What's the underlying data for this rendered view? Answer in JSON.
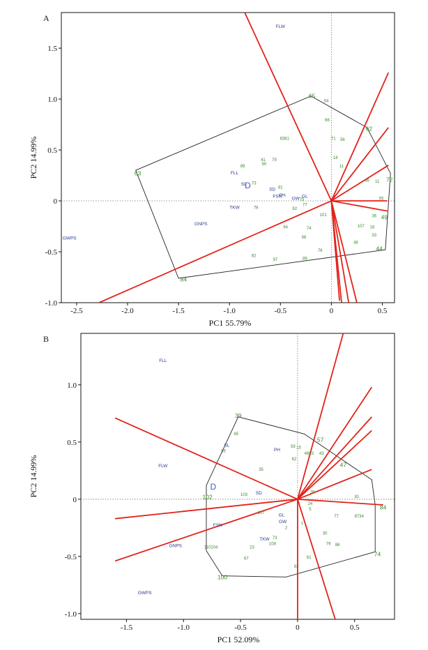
{
  "chart_data": [
    {
      "type": "scatter",
      "panel_label": "A",
      "xlabel": "PC1 55.79%",
      "ylabel": "PC2 14.99%",
      "xlim": [
        -2.65,
        0.62
      ],
      "ylim": [
        -1.0,
        1.85
      ],
      "xticks": [
        -2.5,
        -2.0,
        -1.5,
        -1.0,
        -0.5,
        0,
        0.5
      ],
      "xtick_labels": [
        "-2.5",
        "-2.0",
        "-1.5",
        "-1.0",
        "-0.5",
        "0",
        "0.5"
      ],
      "yticks": [
        -1.0,
        -0.5,
        0,
        0.5,
        1.0,
        1.5
      ],
      "ytick_labels": [
        "-1.0",
        "-0.5",
        "0",
        "0.5",
        "1.0",
        "1.5"
      ],
      "traits": [
        {
          "label": "FLW",
          "x": -0.5,
          "y": 1.7
        },
        {
          "label": "FLL",
          "x": -0.95,
          "y": 0.26
        },
        {
          "label": "SL",
          "x": -0.86,
          "y": 0.15
        },
        {
          "label": "SD",
          "x": -0.58,
          "y": 0.1
        },
        {
          "label": "PH",
          "x": -0.48,
          "y": 0.04
        },
        {
          "label": "FSN",
          "x": -0.53,
          "y": 0.03
        },
        {
          "label": "GW",
          "x": -0.35,
          "y": 0.01
        },
        {
          "label": "GL",
          "x": -0.26,
          "y": 0.03
        },
        {
          "label": "TKW",
          "x": -0.95,
          "y": -0.08
        },
        {
          "label": "GNPS",
          "x": -1.28,
          "y": -0.24
        },
        {
          "label": "GWPS",
          "x": -2.57,
          "y": -0.38
        }
      ],
      "center_label": {
        "label": "D",
        "x": -0.82,
        "y": 0.15
      },
      "hull": [
        [
          -1.92,
          0.3
        ],
        [
          -0.2,
          1.03
        ],
        [
          0.35,
          0.72
        ],
        [
          0.58,
          0.27
        ],
        [
          0.53,
          -0.48
        ],
        [
          -1.5,
          -0.76
        ]
      ],
      "genotypes_large": [
        {
          "label": "65",
          "x": -0.19,
          "y": 1.03
        },
        {
          "label": "63",
          "x": -1.9,
          "y": 0.27
        },
        {
          "label": "84",
          "x": -1.45,
          "y": -0.77
        },
        {
          "label": "62",
          "x": 0.37,
          "y": 0.71
        },
        {
          "label": "72",
          "x": 0.57,
          "y": 0.21
        },
        {
          "label": "49",
          "x": 0.52,
          "y": -0.16
        },
        {
          "label": "44",
          "x": 0.47,
          "y": -0.47
        }
      ],
      "genotypes": [
        {
          "label": "54",
          "x": -0.05,
          "y": 0.97
        },
        {
          "label": "66",
          "x": -0.04,
          "y": 0.78
        },
        {
          "label": "8381",
          "x": -0.46,
          "y": 0.6
        },
        {
          "label": "71",
          "x": 0.02,
          "y": 0.6
        },
        {
          "label": "56",
          "x": 0.11,
          "y": 0.59
        },
        {
          "label": "79",
          "x": -0.56,
          "y": 0.39
        },
        {
          "label": "41",
          "x": -0.67,
          "y": 0.39
        },
        {
          "label": "90",
          "x": -0.66,
          "y": 0.35
        },
        {
          "label": "89",
          "x": -0.87,
          "y": 0.33
        },
        {
          "label": "18",
          "x": 0.04,
          "y": 0.41
        },
        {
          "label": "11",
          "x": 0.1,
          "y": 0.33
        },
        {
          "label": "46",
          "x": 0.35,
          "y": 0.19
        },
        {
          "label": "11",
          "x": 0.45,
          "y": 0.18
        },
        {
          "label": "73",
          "x": -0.76,
          "y": 0.16
        },
        {
          "label": "81",
          "x": -0.5,
          "y": 0.12
        },
        {
          "label": "75",
          "x": -0.29,
          "y": 0.0
        },
        {
          "label": "78",
          "x": -0.74,
          "y": -0.08
        },
        {
          "label": "92",
          "x": -0.36,
          "y": -0.09
        },
        {
          "label": "77",
          "x": -0.26,
          "y": -0.05
        },
        {
          "label": "94",
          "x": -0.45,
          "y": -0.27
        },
        {
          "label": "74",
          "x": -0.22,
          "y": -0.28
        },
        {
          "label": "98",
          "x": -0.27,
          "y": -0.37
        },
        {
          "label": "101",
          "x": -0.08,
          "y": -0.15
        },
        {
          "label": "82",
          "x": -0.76,
          "y": -0.55
        },
        {
          "label": "97",
          "x": -0.55,
          "y": -0.59
        },
        {
          "label": "76",
          "x": -0.11,
          "y": -0.5
        },
        {
          "label": "89",
          "x": -0.26,
          "y": -0.58
        },
        {
          "label": "55",
          "x": 0.49,
          "y": 0.01
        },
        {
          "label": "36",
          "x": 0.42,
          "y": -0.16
        },
        {
          "label": "107",
          "x": 0.29,
          "y": -0.26
        },
        {
          "label": "16",
          "x": 0.4,
          "y": -0.27
        },
        {
          "label": "33",
          "x": 0.42,
          "y": -0.35
        },
        {
          "label": "48",
          "x": 0.24,
          "y": -0.42
        }
      ],
      "vectors": [
        {
          "x": -0.85,
          "y": 1.85
        },
        {
          "x": -2.28,
          "y": -1.0
        },
        {
          "x": 0.56,
          "y": 1.26
        },
        {
          "x": 0.56,
          "y": 0.72
        },
        {
          "x": 0.56,
          "y": 0.35
        },
        {
          "x": 0.55,
          "y": 0.0
        },
        {
          "x": 0.55,
          "y": -0.1
        },
        {
          "x": 0.1,
          "y": -1.0
        },
        {
          "x": 0.17,
          "y": -1.0
        },
        {
          "x": 0.25,
          "y": -1.0
        },
        {
          "x": 0.08,
          "y": -0.98
        }
      ]
    },
    {
      "type": "scatter",
      "panel_label": "B",
      "xlabel": "PC1 52.09%",
      "ylabel": "PC2 14.99%",
      "xlim": [
        -1.9,
        0.85
      ],
      "ylim": [
        -1.05,
        1.45
      ],
      "xticks": [
        -1.5,
        -1.0,
        -0.5,
        0,
        0.5
      ],
      "xtick_labels": [
        "-1.5",
        "-1.0",
        "-0.5",
        "0",
        "0.5"
      ],
      "yticks": [
        -1.0,
        -0.5,
        0,
        0.5,
        1.0
      ],
      "ytick_labels": [
        "-1.0",
        "-0.5",
        "0",
        "0.5",
        "1.0"
      ],
      "traits": [
        {
          "label": "FLL",
          "x": -1.18,
          "y": 1.2
        },
        {
          "label": "FLW",
          "x": -1.18,
          "y": 0.28
        },
        {
          "label": "SL",
          "x": -0.62,
          "y": 0.46
        },
        {
          "label": "PH",
          "x": -0.18,
          "y": 0.42
        },
        {
          "label": "GL",
          "x": -0.14,
          "y": -0.15
        },
        {
          "label": "GW",
          "x": -0.13,
          "y": -0.21
        },
        {
          "label": "FSN",
          "x": -0.7,
          "y": -0.24
        },
        {
          "label": "TKW",
          "x": -0.29,
          "y": -0.36
        },
        {
          "label": "GNPS",
          "x": -1.07,
          "y": -0.42
        },
        {
          "label": "GWPS",
          "x": -1.34,
          "y": -0.83
        },
        {
          "label": "SD",
          "x": -0.34,
          "y": 0.04
        }
      ],
      "center_label": {
        "label": "D",
        "x": -0.74,
        "y": 0.11
      },
      "hull": [
        [
          -0.8,
          0.12
        ],
        [
          -0.52,
          0.72
        ],
        [
          0.06,
          0.57
        ],
        [
          0.65,
          0.17
        ],
        [
          0.68,
          -0.05
        ],
        [
          0.68,
          -0.46
        ],
        [
          -0.1,
          -0.68
        ],
        [
          -0.66,
          -0.67
        ],
        [
          -0.8,
          -0.45
        ]
      ],
      "genotypes_large": [
        {
          "label": "39",
          "x": -0.52,
          "y": 0.73
        },
        {
          "label": "102",
          "x": -0.79,
          "y": 0.02
        },
        {
          "label": "100",
          "x": -0.66,
          "y": -0.68
        },
        {
          "label": "84",
          "x": 0.75,
          "y": -0.07
        },
        {
          "label": "74",
          "x": 0.7,
          "y": -0.48
        },
        {
          "label": "57",
          "x": 0.2,
          "y": 0.52
        },
        {
          "label": "47",
          "x": 0.4,
          "y": 0.3
        }
      ],
      "genotypes": [
        {
          "label": "49",
          "x": -0.54,
          "y": 0.56
        },
        {
          "label": "55",
          "x": -0.65,
          "y": 0.41
        },
        {
          "label": "35",
          "x": -0.32,
          "y": 0.25
        },
        {
          "label": "103",
          "x": -0.47,
          "y": 0.03
        },
        {
          "label": "59",
          "x": -0.04,
          "y": 0.45
        },
        {
          "label": "62",
          "x": -0.03,
          "y": 0.34
        },
        {
          "label": "15",
          "x": 0.01,
          "y": 0.44
        },
        {
          "label": "43",
          "x": 0.21,
          "y": 0.39
        },
        {
          "label": "4893",
          "x": 0.1,
          "y": 0.39
        },
        {
          "label": "77",
          "x": 0.34,
          "y": -0.16
        },
        {
          "label": "8734",
          "x": 0.54,
          "y": -0.16
        },
        {
          "label": "81",
          "x": 0.52,
          "y": 0.01
        },
        {
          "label": "24",
          "x": 0.11,
          "y": -0.05
        },
        {
          "label": "107",
          "x": -0.32,
          "y": -0.13
        },
        {
          "label": "2",
          "x": -0.1,
          "y": -0.26
        },
        {
          "label": "73",
          "x": -0.2,
          "y": -0.35
        },
        {
          "label": "108",
          "x": -0.22,
          "y": -0.4
        },
        {
          "label": "23",
          "x": -0.4,
          "y": -0.43
        },
        {
          "label": "67",
          "x": -0.45,
          "y": -0.53
        },
        {
          "label": "110104",
          "x": -0.76,
          "y": -0.43
        },
        {
          "label": "61",
          "x": 0.1,
          "y": -0.52
        },
        {
          "label": "82",
          "x": -0.01,
          "y": -0.6
        },
        {
          "label": "86",
          "x": 0.35,
          "y": -0.41
        },
        {
          "label": "79",
          "x": 0.27,
          "y": -0.4
        },
        {
          "label": "30",
          "x": 0.24,
          "y": -0.31
        },
        {
          "label": "1",
          "x": 0.04,
          "y": -0.22
        },
        {
          "label": "5",
          "x": 0.11,
          "y": -0.1
        },
        {
          "label": "26",
          "x": 0.13,
          "y": 0.05
        }
      ],
      "vectors": [
        {
          "x": -1.6,
          "y": 0.71
        },
        {
          "x": -1.6,
          "y": -0.17
        },
        {
          "x": -1.6,
          "y": -0.54
        },
        {
          "x": 0.4,
          "y": 1.45
        },
        {
          "x": 0.65,
          "y": 0.98
        },
        {
          "x": 0.65,
          "y": 0.72
        },
        {
          "x": 0.65,
          "y": 0.6
        },
        {
          "x": 0.65,
          "y": 0.26
        },
        {
          "x": 0.75,
          "y": -0.05
        },
        {
          "x": 0.33,
          "y": -1.05
        },
        {
          "x": 0.0,
          "y": -1.05
        }
      ]
    }
  ]
}
